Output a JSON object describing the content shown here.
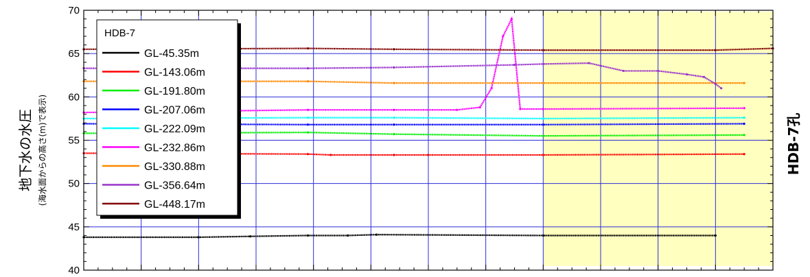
{
  "chart_data": {
    "type": "scatter",
    "title": "",
    "ylabel": "地下水の水圧",
    "ylabel_sub": "(海水面からの高さ(m)で表示)",
    "side_label": "HDB-7孔",
    "ylim": [
      40,
      70
    ],
    "yticks": [
      40,
      45,
      50,
      55,
      60,
      65,
      70
    ],
    "xlim": [
      0,
      12
    ],
    "legend": {
      "title": "HDB-7",
      "placement": "top-left"
    },
    "highlight_region": {
      "x": [
        8,
        12
      ],
      "color": "#ffffc0"
    },
    "grid": true,
    "series": [
      {
        "name": "GL-45.35m",
        "color": "#000000",
        "values": [
          [
            0.0,
            43.8
          ],
          [
            2.0,
            43.8
          ],
          [
            2.9,
            43.9
          ],
          [
            3.9,
            44.0
          ],
          [
            4.6,
            44.0
          ],
          [
            5.1,
            44.1
          ],
          [
            8.0,
            44.0
          ],
          [
            11.0,
            44.0
          ]
        ]
      },
      {
        "name": "GL-143.06m",
        "color": "#ff0000",
        "values": [
          [
            0.0,
            53.5
          ],
          [
            3.9,
            53.4
          ],
          [
            4.3,
            53.3
          ],
          [
            5.4,
            53.3
          ],
          [
            6.0,
            53.3
          ],
          [
            8.0,
            53.3
          ],
          [
            11.5,
            53.4
          ]
        ]
      },
      {
        "name": "GL-191.80m",
        "color": "#00ee00",
        "values": [
          [
            0.0,
            55.8
          ],
          [
            3.9,
            55.9
          ],
          [
            5.4,
            55.7
          ],
          [
            8.0,
            55.5
          ],
          [
            11.5,
            55.6
          ]
        ]
      },
      {
        "name": "GL-207.06m",
        "color": "#0000ff",
        "values": [
          [
            0.0,
            56.9
          ],
          [
            3.9,
            56.8
          ],
          [
            5.4,
            56.8
          ],
          [
            8.0,
            56.8
          ],
          [
            11.5,
            56.9
          ]
        ]
      },
      {
        "name": "GL-222.09m",
        "color": "#00ffff",
        "values": [
          [
            0.0,
            57.5
          ],
          [
            3.9,
            57.6
          ],
          [
            5.4,
            57.6
          ],
          [
            8.0,
            57.5
          ],
          [
            11.5,
            57.6
          ]
        ]
      },
      {
        "name": "GL-232.86m",
        "color": "#ff00ff",
        "values": [
          [
            0.0,
            58.2
          ],
          [
            3.9,
            58.5
          ],
          [
            5.4,
            58.5
          ],
          [
            6.5,
            58.5
          ],
          [
            6.9,
            58.8
          ],
          [
            7.1,
            61.0
          ],
          [
            7.3,
            67.0
          ],
          [
            7.45,
            69.0
          ],
          [
            7.6,
            58.6
          ],
          [
            8.0,
            58.6
          ],
          [
            11.5,
            58.7
          ]
        ]
      },
      {
        "name": "GL-330.88m",
        "color": "#ff8800",
        "values": [
          [
            0.0,
            61.8
          ],
          [
            3.9,
            61.8
          ],
          [
            5.4,
            61.6
          ],
          [
            8.0,
            61.6
          ],
          [
            11.5,
            61.6
          ]
        ]
      },
      {
        "name": "GL-356.64m",
        "color": "#9933cc",
        "values": [
          [
            0.0,
            63.3
          ],
          [
            3.9,
            63.3
          ],
          [
            5.4,
            63.4
          ],
          [
            7.5,
            63.7
          ],
          [
            8.0,
            63.8
          ],
          [
            8.8,
            63.9
          ],
          [
            9.4,
            63.0
          ],
          [
            10.0,
            63.0
          ],
          [
            10.5,
            62.6
          ],
          [
            10.8,
            62.3
          ],
          [
            11.0,
            61.5
          ],
          [
            11.1,
            61.0
          ]
        ]
      },
      {
        "name": "GL-448.17m",
        "color": "#800000",
        "values": [
          [
            0.0,
            65.5
          ],
          [
            3.9,
            65.6
          ],
          [
            5.4,
            65.5
          ],
          [
            8.0,
            65.4
          ],
          [
            11.0,
            65.4
          ],
          [
            12.0,
            65.6
          ]
        ]
      }
    ]
  }
}
